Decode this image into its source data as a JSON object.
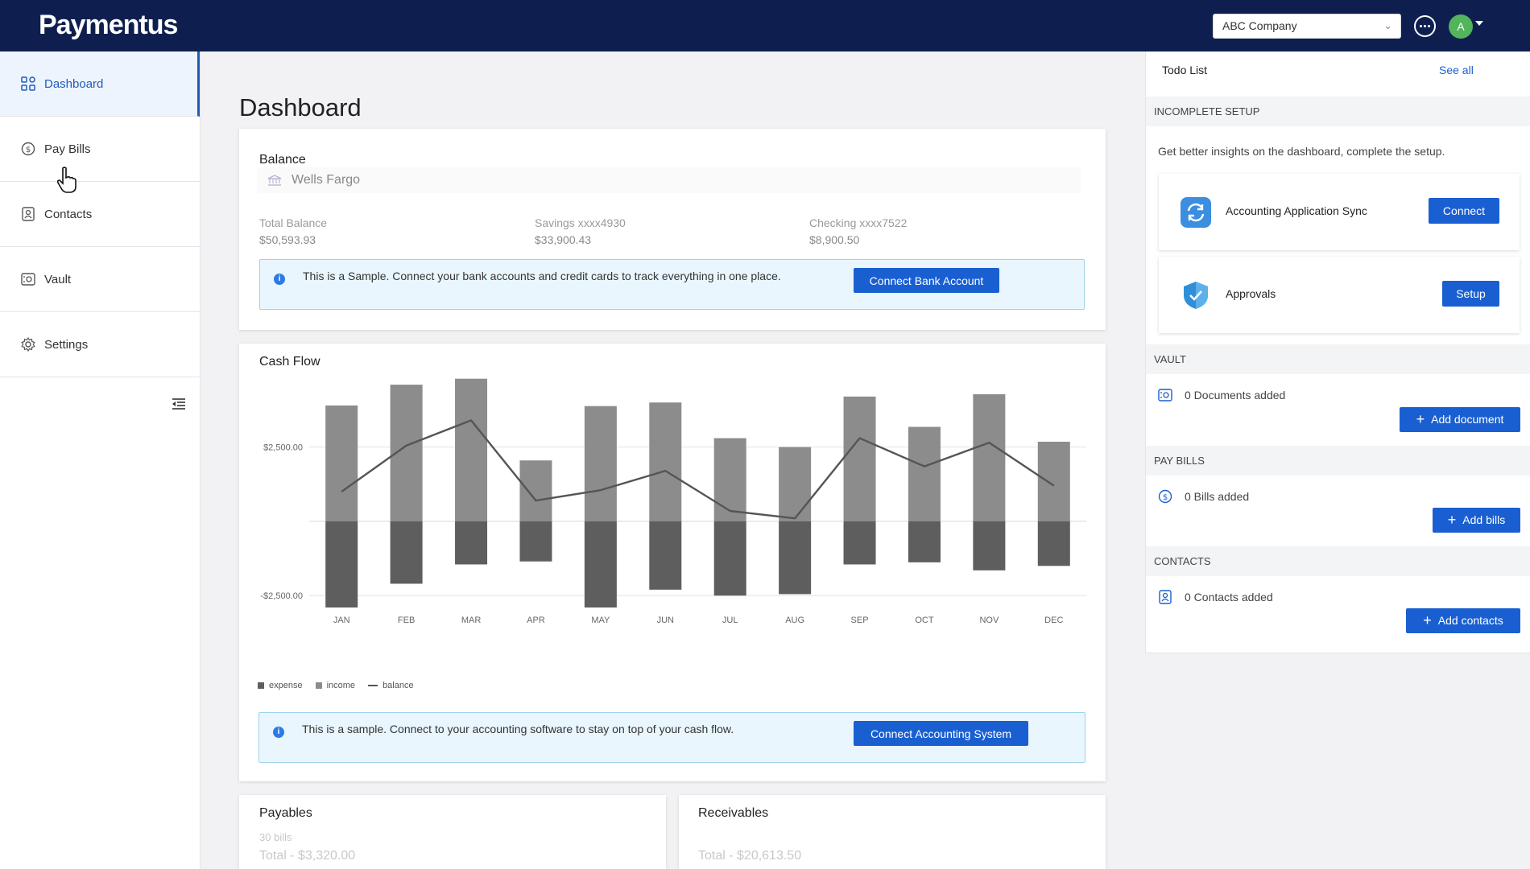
{
  "header": {
    "logo": "Paymentus",
    "company_select": "ABC Company",
    "avatar_initial": "A"
  },
  "sidebar": {
    "items": [
      {
        "label": "Dashboard",
        "icon": "dashboard-icon",
        "active": true
      },
      {
        "label": "Pay Bills",
        "icon": "dollar-icon",
        "active": false
      },
      {
        "label": "Contacts",
        "icon": "contact-icon",
        "active": false
      },
      {
        "label": "Vault",
        "icon": "vault-icon",
        "active": false
      },
      {
        "label": "Settings",
        "icon": "gear-icon",
        "active": false
      }
    ]
  },
  "main": {
    "title": "Dashboard",
    "balance": {
      "title": "Balance",
      "bank": "Wells Fargo",
      "columns": [
        {
          "label": "Total Balance",
          "value": "$50,593.93"
        },
        {
          "label": "Savings xxxx4930",
          "value": "$33,900.43"
        },
        {
          "label": "Checking xxxx7522",
          "value": "$8,900.50"
        }
      ],
      "info_text": "This is a Sample. Connect your bank accounts and credit cards to track everything in one place.",
      "button": "Connect Bank Account"
    },
    "cashflow": {
      "title": "Cash Flow",
      "info_text": "This is a sample. Connect to your accounting software to stay on top of your cash flow.",
      "button": "Connect Accounting System"
    },
    "payables": {
      "title": "Payables",
      "count": "30 bills",
      "total": "Total - $3,320.00"
    },
    "receivables": {
      "title": "Receivables",
      "total": "Total - $20,613.50"
    }
  },
  "chart_data": {
    "type": "bar",
    "categories": [
      "JAN",
      "FEB",
      "MAR",
      "APR",
      "MAY",
      "JUN",
      "JUL",
      "AUG",
      "SEP",
      "OCT",
      "NOV",
      "DEC"
    ],
    "series": [
      {
        "name": "income",
        "type": "bar",
        "values": [
          3900,
          4600,
          4800,
          2050,
          3880,
          4000,
          2800,
          2500,
          4200,
          3180,
          4280,
          2680
        ]
      },
      {
        "name": "expense",
        "type": "bar",
        "values": [
          -2900,
          -2100,
          -1450,
          -1350,
          -2900,
          -2300,
          -2500,
          -2450,
          -1450,
          -1380,
          -1650,
          -1500
        ]
      },
      {
        "name": "balance",
        "type": "line",
        "values": [
          1000,
          2550,
          3400,
          700,
          1050,
          1700,
          350,
          100,
          2800,
          1850,
          2650,
          1200
        ]
      }
    ],
    "yticks": [
      "$2,500.00",
      "-$2,500.00"
    ],
    "ylim": [
      -2900,
      4900
    ],
    "legend": [
      "expense",
      "income",
      "balance"
    ],
    "colors": {
      "income": "#8c8c8c",
      "expense": "#5e5e5e",
      "balance": "#555555"
    },
    "grid": true,
    "legend_position": "bottom-left"
  },
  "right_panel": {
    "todo_title": "Todo List",
    "see_all": "See all",
    "incomplete_setup": "INCOMPLETE SETUP",
    "setup_hint": "Get better insights on the dashboard, complete the setup.",
    "setup_items": [
      {
        "label": "Accounting Application Sync",
        "button": "Connect",
        "icon": "sync-icon"
      },
      {
        "label": "Approvals",
        "button": "Setup",
        "icon": "shield-check-icon"
      }
    ],
    "vault": {
      "head": "VAULT",
      "status": "0 Documents added",
      "button": "Add document"
    },
    "pay_bills": {
      "head": "PAY BILLS",
      "status": "0 Bills added",
      "button": "Add bills"
    },
    "contacts": {
      "head": "CONTACTS",
      "status": "0 Contacts added",
      "button": "Add contacts"
    }
  }
}
